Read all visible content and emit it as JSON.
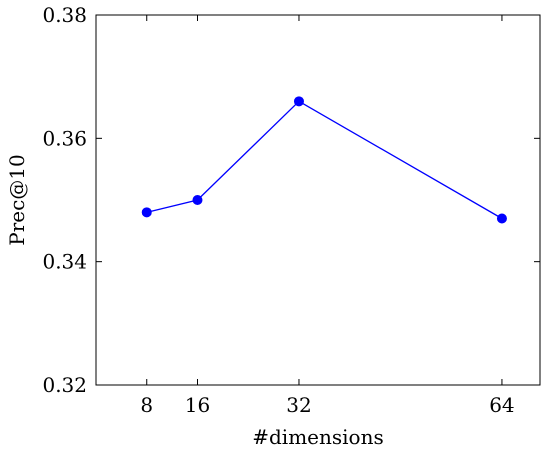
{
  "chart_data": {
    "type": "line",
    "title": "",
    "xlabel": "#dimensions",
    "ylabel": "Prec@10",
    "x": [
      8,
      16,
      32,
      64
    ],
    "series": [
      {
        "values": [
          0.348,
          0.35,
          0.366,
          0.347
        ],
        "color": "#0000ff"
      }
    ],
    "xticks": [
      8,
      16,
      32,
      64
    ],
    "xtick_labels": [
      "8",
      "16",
      "32",
      "64"
    ],
    "yticks": [
      0.32,
      0.34,
      0.36,
      0.38
    ],
    "ytick_labels": [
      "0.32",
      "0.34",
      "0.36",
      "0.38"
    ],
    "xlim": [
      0,
      70
    ],
    "ylim": [
      0.32,
      0.38
    ],
    "grid": false,
    "x_scale": "linear",
    "y_scale": "linear"
  }
}
